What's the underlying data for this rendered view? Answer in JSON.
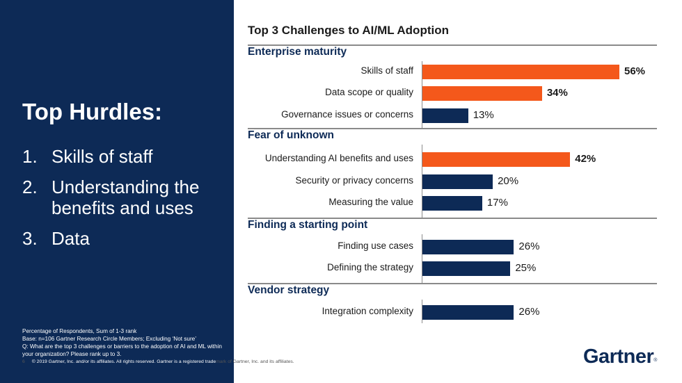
{
  "left": {
    "title": "Top Hurdles:",
    "hurdles": [
      {
        "num": "1.",
        "text": "Skills of staff"
      },
      {
        "num": "2.",
        "text": "Understanding the benefits and uses"
      },
      {
        "num": "3.",
        "text": "Data"
      }
    ]
  },
  "footnote": {
    "line1": "Percentage of Respondents, Sum of 1-3 rank",
    "line2": "Base: n=106 Gartner Research Circle Members; Excluding ‘Not sure’",
    "line3": "Q: What are the top 3 challenges or barriers to the adoption of AI and ML within your organization? Please rank up to 3."
  },
  "copyright": {
    "page_number": "6",
    "text_part1": "© 2019 Gartner, Inc. and/or its affiliates. All rights reserved. Gartner is a registered trade",
    "text_part2": "mark of Gartner, Inc. and its affiliates."
  },
  "logo": {
    "text": "Gartner",
    "mark": "®"
  },
  "colors": {
    "highlight": "#f4581b",
    "default": "#0d2a56",
    "panel": "#0d2a56"
  },
  "chart_data": {
    "type": "bar",
    "orientation": "horizontal",
    "title": "Top 3 Challenges to AI/ML Adoption",
    "xlabel": "",
    "ylabel": "",
    "value_suffix": "%",
    "xlim": [
      0,
      56
    ],
    "groups": [
      {
        "name": "Enterprise maturity",
        "items": [
          {
            "label": "Skills of staff",
            "value": 56,
            "highlight": true
          },
          {
            "label": "Data scope or quality",
            "value": 34,
            "highlight": true
          },
          {
            "label": "Governance issues or concerns",
            "value": 13,
            "highlight": false
          }
        ]
      },
      {
        "name": "Fear of unknown",
        "items": [
          {
            "label": "Understanding AI benefits and uses",
            "value": 42,
            "highlight": true
          },
          {
            "label": "Security or privacy concerns",
            "value": 20,
            "highlight": false
          },
          {
            "label": "Measuring the value",
            "value": 17,
            "highlight": false
          }
        ]
      },
      {
        "name": "Finding a starting point",
        "items": [
          {
            "label": "Finding use cases",
            "value": 26,
            "highlight": false
          },
          {
            "label": "Defining the strategy",
            "value": 25,
            "highlight": false
          }
        ]
      },
      {
        "name": "Vendor strategy",
        "items": [
          {
            "label": "Integration complexity",
            "value": 26,
            "highlight": false
          }
        ]
      }
    ]
  }
}
